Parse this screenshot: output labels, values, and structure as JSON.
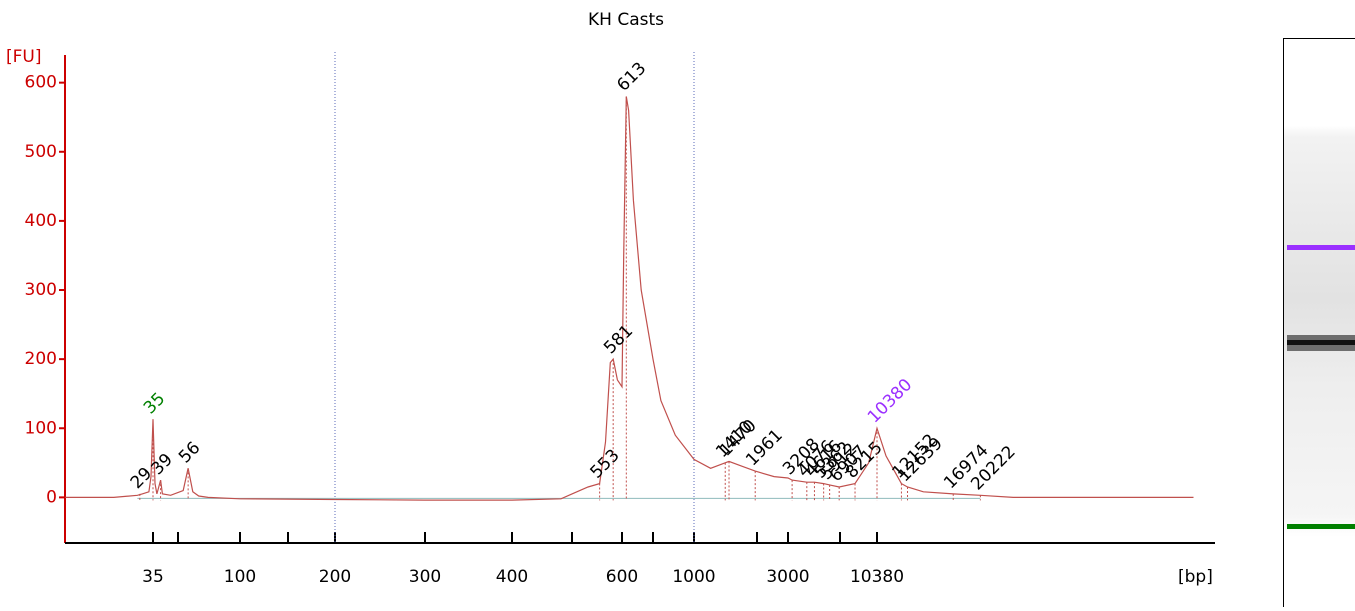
{
  "chart_data": {
    "type": "line",
    "title": "KH Casts",
    "y_label": "[FU]",
    "x_label": "[bp]",
    "color": "#c0504d",
    "axis_color": "#cc0000",
    "ylim": [
      -66,
      640
    ],
    "yticks": [
      0,
      100,
      200,
      300,
      400,
      500,
      600
    ],
    "xticks": [
      35,
      100,
      200,
      300,
      400,
      600,
      1000,
      3000,
      10380
    ],
    "xminor_ticks": [
      50,
      150,
      500,
      700,
      2000,
      7000
    ],
    "x": [
      10,
      20,
      28,
      30,
      33,
      34,
      35,
      36,
      37,
      39,
      40,
      45,
      53,
      56,
      59,
      63,
      70,
      100,
      200,
      300,
      400,
      480,
      500,
      530,
      553,
      565,
      575,
      581,
      590,
      600,
      605,
      613,
      620,
      635,
      660,
      700,
      750,
      850,
      1000,
      1200,
      1410,
      1470,
      1700,
      1961,
      2500,
      3000,
      3208,
      4076,
      4616,
      5362,
      5912,
      6907,
      8215,
      9500,
      10380,
      11000,
      12152,
      12639,
      14000,
      16974,
      20222,
      25000,
      40000,
      80000
    ],
    "values": [
      0,
      0,
      3,
      5,
      8,
      30,
      113,
      20,
      5,
      25,
      5,
      3,
      10,
      42,
      8,
      2,
      0,
      -2,
      -3,
      -4,
      -4,
      -2,
      5,
      15,
      20,
      80,
      195,
      200,
      170,
      160,
      350,
      580,
      560,
      430,
      300,
      200,
      140,
      90,
      55,
      42,
      50,
      52,
      45,
      38,
      30,
      28,
      25,
      22,
      22,
      20,
      18,
      15,
      20,
      50,
      100,
      60,
      20,
      15,
      8,
      5,
      3,
      0,
      0,
      0
    ],
    "peaks": [
      {
        "bp": 29,
        "fu": 5
      },
      {
        "bp": 35,
        "fu": 113,
        "color": "#008000"
      },
      {
        "bp": 39,
        "fu": 25
      },
      {
        "bp": 56,
        "fu": 42
      },
      {
        "bp": 553,
        "fu": 20
      },
      {
        "bp": 581,
        "fu": 200
      },
      {
        "bp": 613,
        "fu": 580
      },
      {
        "bp": 1410,
        "fu": 50
      },
      {
        "bp": 1470,
        "fu": 52
      },
      {
        "bp": 1961,
        "fu": 38
      },
      {
        "bp": 3208,
        "fu": 25
      },
      {
        "bp": 4076,
        "fu": 22
      },
      {
        "bp": 4616,
        "fu": 22
      },
      {
        "bp": 5362,
        "fu": 20
      },
      {
        "bp": 5912,
        "fu": 18
      },
      {
        "bp": 6907,
        "fu": 15
      },
      {
        "bp": 8215,
        "fu": 20
      },
      {
        "bp": 10380,
        "fu": 100,
        "color": "#9b30ff"
      },
      {
        "bp": 12152,
        "fu": 20
      },
      {
        "bp": 12639,
        "fu": 15
      },
      {
        "bp": 16974,
        "fu": 5
      },
      {
        "bp": 20222,
        "fu": 3
      }
    ]
  }
}
